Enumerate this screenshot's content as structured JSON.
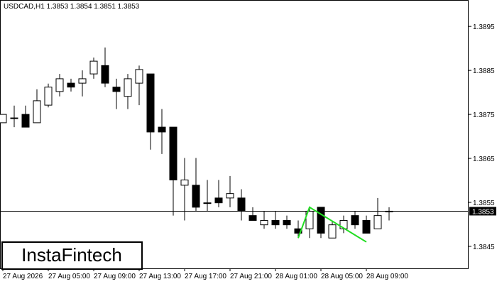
{
  "chart_data": {
    "type": "candlestick",
    "title": "USDCAD,H1  1.3853 1.3854 1.3851 1.3853",
    "categories": [
      "27 Aug 2026",
      null,
      null,
      null,
      "27 Aug 05:00",
      null,
      null,
      null,
      "27 Aug 09:00",
      null,
      null,
      null,
      "27 Aug 13:00",
      null,
      null,
      null,
      "27 Aug 17:00",
      null,
      null,
      null,
      "27 Aug 21:00",
      null,
      null,
      null,
      "28 Aug 01:00",
      null,
      null,
      null,
      "28 Aug 05:00",
      null,
      null,
      null,
      "28 Aug 09:00",
      null,
      null
    ],
    "open": [
      1.38731,
      1.38742,
      1.3875,
      1.38731,
      1.38771,
      1.38802,
      1.38821,
      1.38821,
      1.38842,
      1.38861,
      1.38812,
      1.38791,
      1.38821,
      1.38842,
      1.38721,
      1.38721,
      1.38589,
      1.38589,
      1.38549,
      1.3856,
      1.3856,
      1.3856,
      1.3852,
      1.38499,
      1.38509,
      1.38509,
      1.3849,
      1.3849,
      1.38539,
      1.38469,
      1.3849,
      1.3852,
      1.38509,
      1.3849,
      1.3853
    ],
    "high": [
      1.3875,
      1.3877,
      1.3877,
      1.38807,
      1.3882,
      1.38842,
      1.38831,
      1.3885,
      1.38879,
      1.38902,
      1.38831,
      1.38842,
      1.38861,
      1.38842,
      1.38762,
      1.38721,
      1.38651,
      1.38651,
      1.38601,
      1.38601,
      1.3861,
      1.3858,
      1.38539,
      1.3853,
      1.3853,
      1.3852,
      1.38509,
      1.38539,
      1.38539,
      1.38509,
      1.3852,
      1.3853,
      1.3852,
      1.3856,
      1.38539
    ],
    "low": [
      1.38731,
      1.38721,
      1.38721,
      1.38731,
      1.38766,
      1.38791,
      1.38802,
      1.38791,
      1.38831,
      1.38812,
      1.38762,
      1.38762,
      1.38771,
      1.3867,
      1.3866,
      1.3852,
      1.38509,
      1.3853,
      1.3853,
      1.38539,
      1.38539,
      1.38509,
      1.38509,
      1.3849,
      1.3849,
      1.3849,
      1.38469,
      1.38469,
      1.38469,
      1.38469,
      1.3848,
      1.3849,
      1.3848,
      1.3849,
      1.38509
    ],
    "close": [
      1.3875,
      1.38742,
      1.38721,
      1.38781,
      1.38812,
      1.38831,
      1.38812,
      1.38831,
      1.38871,
      1.38821,
      1.38802,
      1.38831,
      1.38852,
      1.3871,
      1.3871,
      1.38601,
      1.38601,
      1.38539,
      1.38549,
      1.38549,
      1.3857,
      1.3853,
      1.38509,
      1.38509,
      1.38499,
      1.38499,
      1.3848,
      1.3853,
      1.3848,
      1.38499,
      1.38509,
      1.38499,
      1.3848,
      1.3852,
      1.3853
    ],
    "last_price": 1.3853,
    "pattern": {
      "color": "#22dd22",
      "x": [
        26,
        27,
        32
      ],
      "values": [
        1.38469,
        1.38539,
        1.3846
      ]
    },
    "ylim": [
      1.384,
      1.3901
    ],
    "yticks": [
      1.3845,
      1.3855,
      1.3865,
      1.3875,
      1.3885,
      1.3895
    ],
    "brand": "InstaFintech"
  }
}
